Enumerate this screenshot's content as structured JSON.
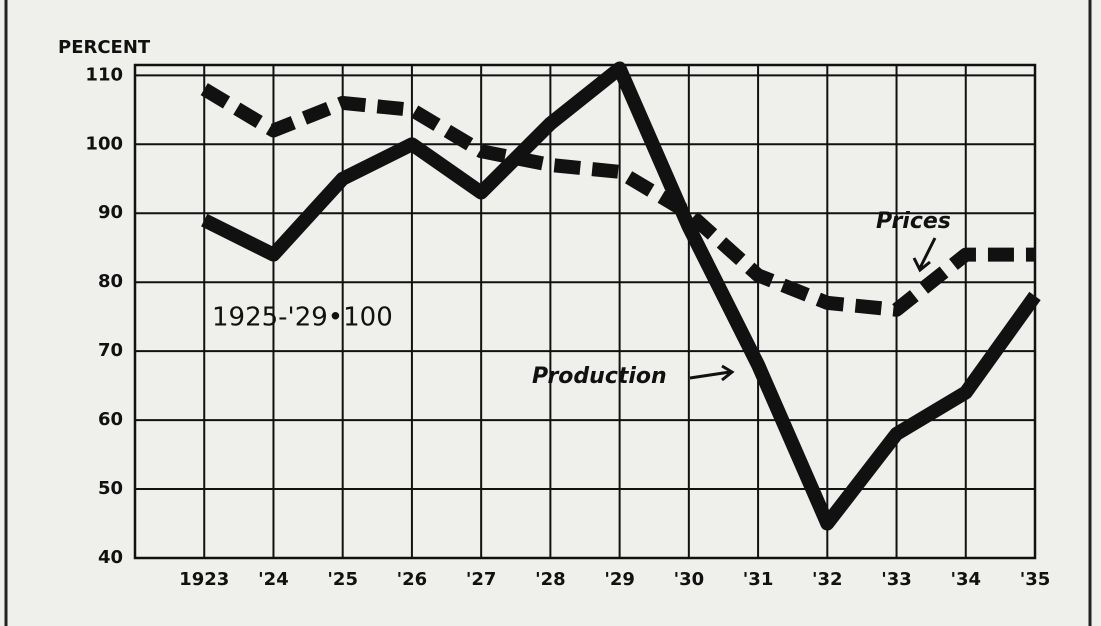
{
  "chart_data": {
    "type": "line",
    "y_axis_label": "PERCENT",
    "categories": [
      "1923",
      "'24",
      "'25",
      "'26",
      "'27",
      "'28",
      "'29",
      "'30",
      "'31",
      "'32",
      "'33",
      "'34",
      "'35"
    ],
    "series": [
      {
        "name": "Production",
        "color": "#111111",
        "dash": "solid",
        "values": [
          89,
          84,
          95,
          100,
          93,
          103,
          111,
          88,
          68,
          45,
          58,
          64,
          78
        ]
      },
      {
        "name": "Prices",
        "color": "#111111",
        "dash": "dashed",
        "values": [
          108,
          102,
          106,
          105,
          99,
          97,
          96,
          90,
          81,
          77,
          76,
          84,
          84
        ]
      }
    ],
    "ylim": [
      40,
      111.5
    ],
    "yticks": [
      40,
      50,
      60,
      70,
      80,
      90,
      100,
      110
    ],
    "grid": true,
    "annotations": [
      "1925-'29•100"
    ]
  }
}
